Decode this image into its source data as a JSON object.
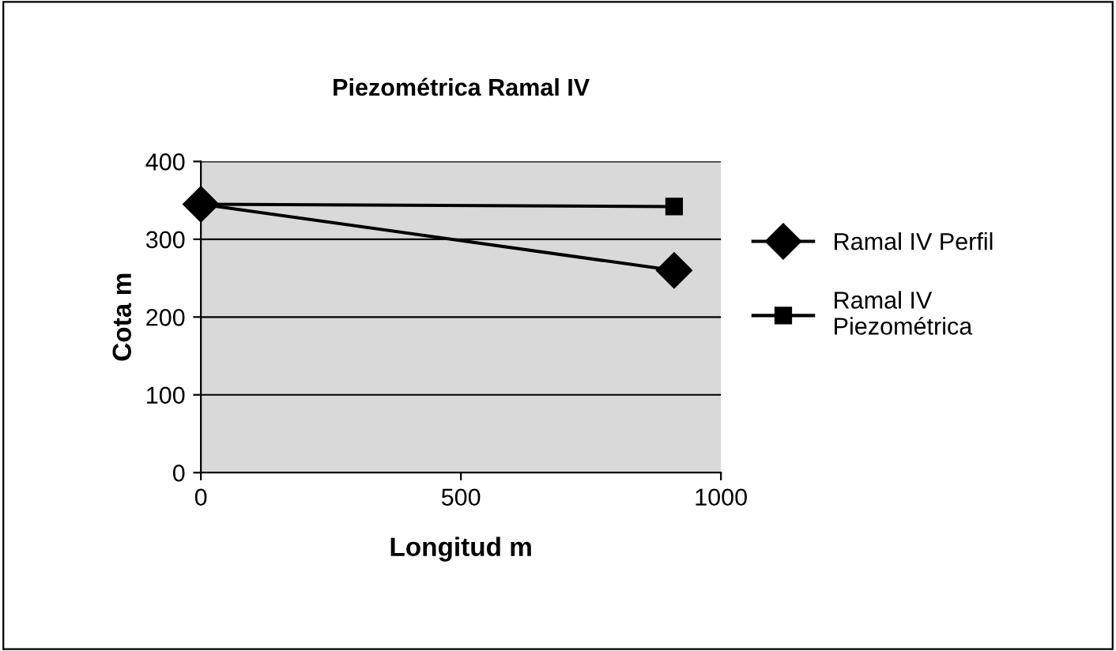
{
  "chart_data": {
    "type": "line",
    "title": "Piezométrica Ramal IV",
    "xlabel": "Longitud m",
    "ylabel": "Cota m",
    "x": [
      0,
      910
    ],
    "series": [
      {
        "name": "Ramal IV Perfil",
        "color": "#000000",
        "values": [
          345,
          260
        ],
        "marker": "diamond"
      },
      {
        "name": "Ramal IV Piezométrica",
        "color": "#000000",
        "values": [
          345,
          342
        ],
        "marker": "square"
      }
    ],
    "xlim": [
      0,
      1000
    ],
    "xticks": [
      0,
      500,
      1000
    ],
    "ylim": [
      0,
      400
    ],
    "yticks": [
      0,
      100,
      200,
      300,
      400
    ],
    "grid": "y",
    "legend": "right",
    "line_style": "solid"
  }
}
